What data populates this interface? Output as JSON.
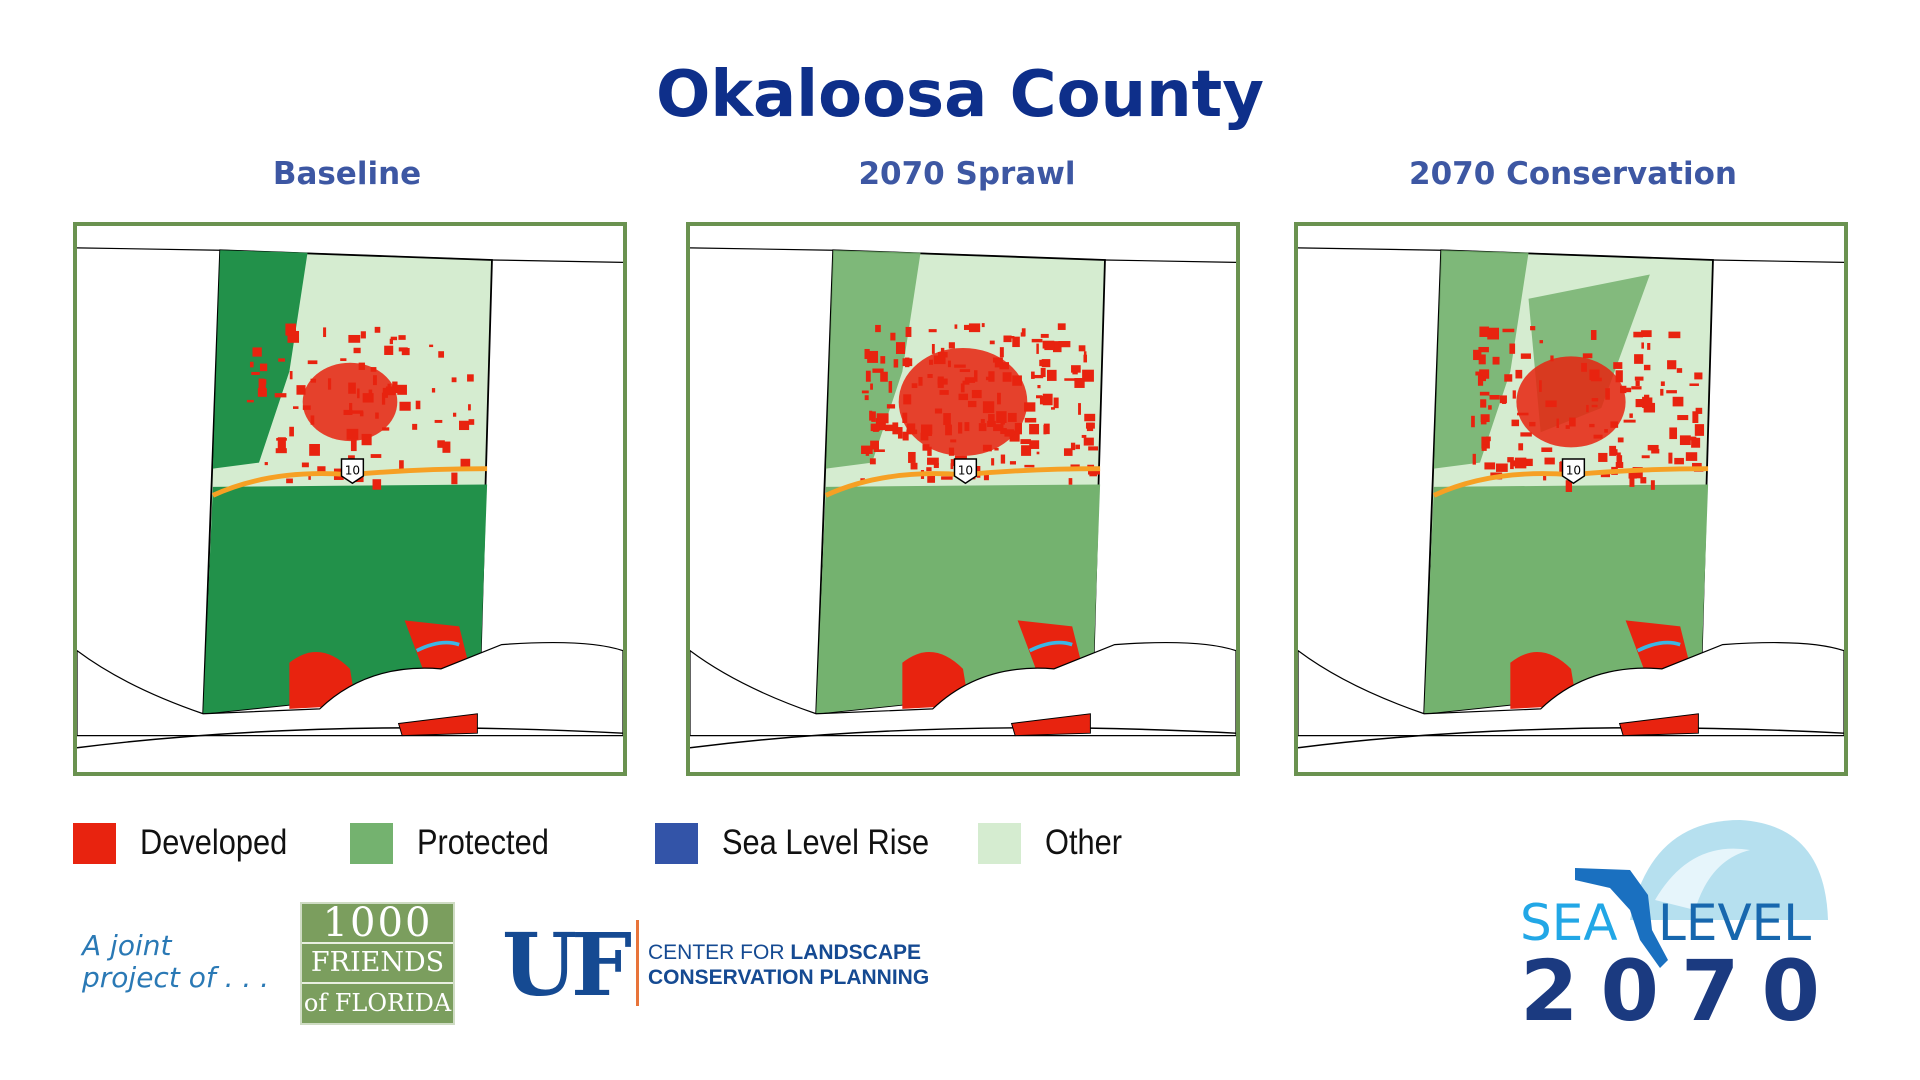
{
  "title": "Okaloosa County",
  "panels": [
    {
      "label": "Baseline",
      "developed_density": 0.35,
      "protected_color": "#22914a"
    },
    {
      "label": "2070 Sprawl",
      "developed_density": 0.7,
      "protected_color": "#74b26f"
    },
    {
      "label": "2070 Conservation",
      "developed_density": 0.5,
      "protected_color": "#74b26f"
    }
  ],
  "map_labels": {
    "interstate": "10"
  },
  "legend": [
    {
      "label": "Developed",
      "color": "#e8230f"
    },
    {
      "label": "Protected",
      "color": "#74b26f"
    },
    {
      "label": "Sea Level Rise",
      "color": "#3354a8"
    },
    {
      "label": "Other",
      "color": "#d5ecd0"
    }
  ],
  "footer": {
    "joint_line1": "A joint",
    "joint_line2": "project of . . .",
    "friends_line1": "1000",
    "friends_line2": "FRIENDS",
    "friends_line3": "of FLORIDA",
    "uf": "UF",
    "clcp_line1_a": "CENTER FOR ",
    "clcp_line1_b": "LANDSCAPE",
    "clcp_line2": "CONSERVATION PLANNING",
    "logo_sea": "SEA",
    "logo_level": "LEVEL",
    "logo_year": "2070"
  }
}
